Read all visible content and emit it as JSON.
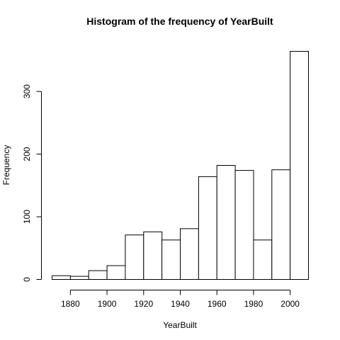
{
  "chart_data": {
    "type": "bar",
    "title": "Histogram of the frequency of YearBuilt",
    "xlabel": "YearBuilt",
    "ylabel": "Frequency",
    "bin_edges": [
      1870,
      1880,
      1890,
      1900,
      1910,
      1920,
      1930,
      1940,
      1950,
      1960,
      1970,
      1980,
      1990,
      2000,
      2010
    ],
    "values": [
      6,
      5,
      14,
      22,
      71,
      76,
      63,
      81,
      164,
      182,
      174,
      63,
      175,
      364
    ],
    "x_ticks": [
      1880,
      1900,
      1920,
      1940,
      1960,
      1980,
      2000
    ],
    "y_ticks": [
      0,
      100,
      200,
      300
    ],
    "xlim": [
      1870,
      2010
    ],
    "ylim": [
      0,
      364
    ],
    "grid": false,
    "colors": {
      "bar_fill": "#ffffff",
      "bar_stroke": "#000000"
    }
  }
}
